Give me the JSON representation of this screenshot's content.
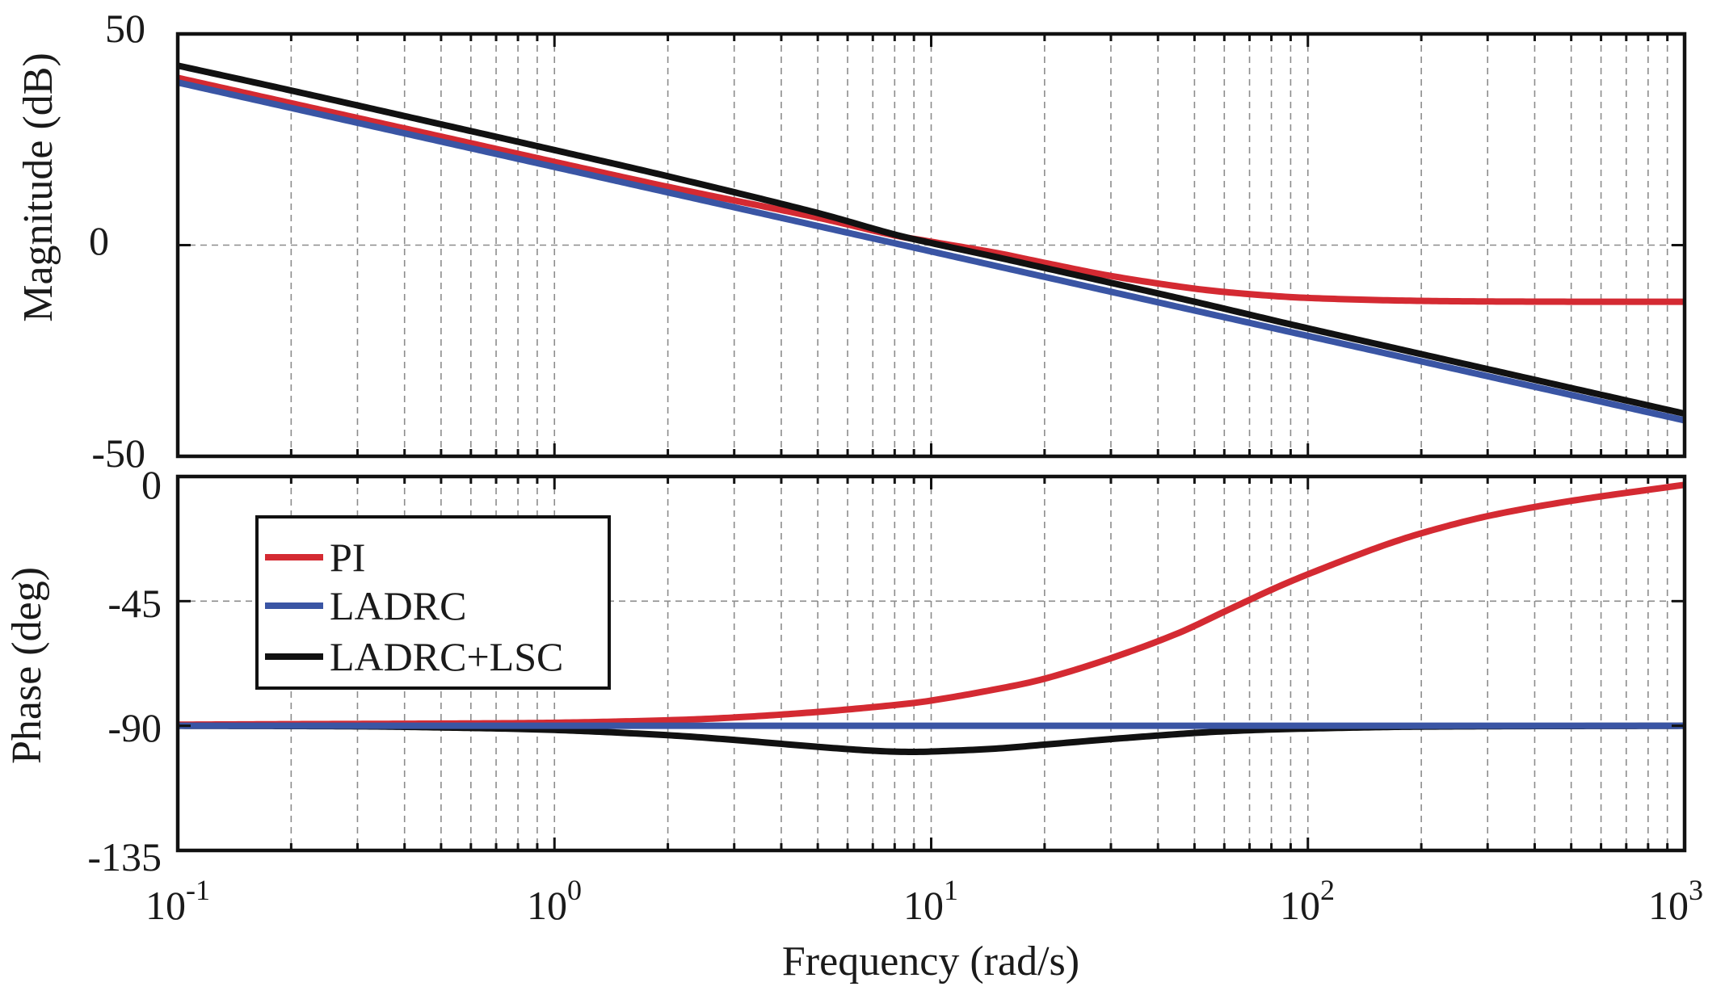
{
  "chart_data": {
    "type": "line",
    "title": "",
    "xlabel": "Frequency (rad/s)",
    "x_scale": "log",
    "xlim": [
      0.1,
      1000
    ],
    "x_ticks": [
      {
        "base": "10",
        "exp": "-1"
      },
      {
        "base": "10",
        "exp": "0"
      },
      {
        "base": "10",
        "exp": "1"
      },
      {
        "base": "10",
        "exp": "2"
      },
      {
        "base": "10",
        "exp": "3"
      }
    ],
    "grid": true,
    "legend": {
      "location": "upper-left of phase plot",
      "entries": [
        "PI",
        "LADRC",
        "LADRC+LSC"
      ]
    },
    "colors": {
      "PI": "#d42a32",
      "LADRC": "#3a55a4",
      "LADRC+LSC": "#111111"
    },
    "subplots": [
      {
        "name": "magnitude",
        "ylabel": "Magnitude (dB)",
        "ylim": [
          -50,
          50
        ],
        "y_ticks": [
          "50",
          "0",
          "-50"
        ],
        "series": [
          {
            "name": "PI",
            "x": [
              0.1,
              0.2,
              0.5,
              1,
              2,
              5,
              8,
              10,
              15,
              20,
              30,
              50,
              70,
              100,
              200,
              500,
              1000
            ],
            "y": [
              39.6,
              33.6,
              25.7,
              19.7,
              13.8,
              6.5,
              2.3,
              0.8,
              -1.9,
              -4.2,
              -7.3,
              -10.3,
              -11.6,
              -12.5,
              -13.2,
              -13.4,
              -13.4
            ]
          },
          {
            "name": "LADRC",
            "x": [
              0.1,
              1,
              10,
              100,
              1000
            ],
            "y": [
              38.5,
              18.5,
              -1.5,
              -21.5,
              -41.5
            ]
          },
          {
            "name": "LADRC+LSC",
            "x": [
              0.1,
              0.2,
              0.5,
              1,
              2,
              5,
              8,
              10,
              15,
              20,
              50,
              100,
              1000
            ],
            "y": [
              42.5,
              36.6,
              28.6,
              22.5,
              16.3,
              7.6,
              2.5,
              0.5,
              -2.9,
              -5.4,
              -13.4,
              -19.7,
              -39.9
            ]
          }
        ]
      },
      {
        "name": "phase",
        "ylabel": "Phase (deg)",
        "ylim": [
          -135,
          0
        ],
        "y_ticks": [
          "0",
          "-45",
          "-90",
          "-135"
        ],
        "series": [
          {
            "name": "PI",
            "x": [
              0.1,
              0.2,
              0.5,
              1,
              2,
              3,
              5,
              8,
              10,
              15,
              20,
              30,
              45,
              60,
              80,
              100,
              150,
              200,
              300,
              500,
              1000
            ],
            "y": [
              -89.6,
              -89.4,
              -89.2,
              -88.9,
              -88,
              -87,
              -85,
              -82.5,
              -80.9,
              -76.7,
              -73,
              -65.6,
              -56.7,
              -48.8,
              -40.9,
              -35.3,
              -26.1,
              -20.5,
              -14.3,
              -8.8,
              -3
            ]
          },
          {
            "name": "LADRC",
            "x": [
              0.1,
              1000
            ],
            "y": [
              -90,
              -90
            ]
          },
          {
            "name": "LADRC+LSC",
            "x": [
              0.1,
              0.3,
              0.5,
              1,
              2,
              3,
              5,
              7,
              8.5,
              10,
              15,
              20,
              30,
              50,
              70,
              100,
              200,
              1000
            ],
            "y": [
              -90,
              -90.2,
              -90.6,
              -91.5,
              -93.4,
              -95.1,
              -97.6,
              -99,
              -99.4,
              -99.3,
              -98.2,
              -96.8,
              -94.8,
              -92.6,
              -91.6,
              -91,
              -90.3,
              -90
            ]
          }
        ]
      }
    ]
  }
}
